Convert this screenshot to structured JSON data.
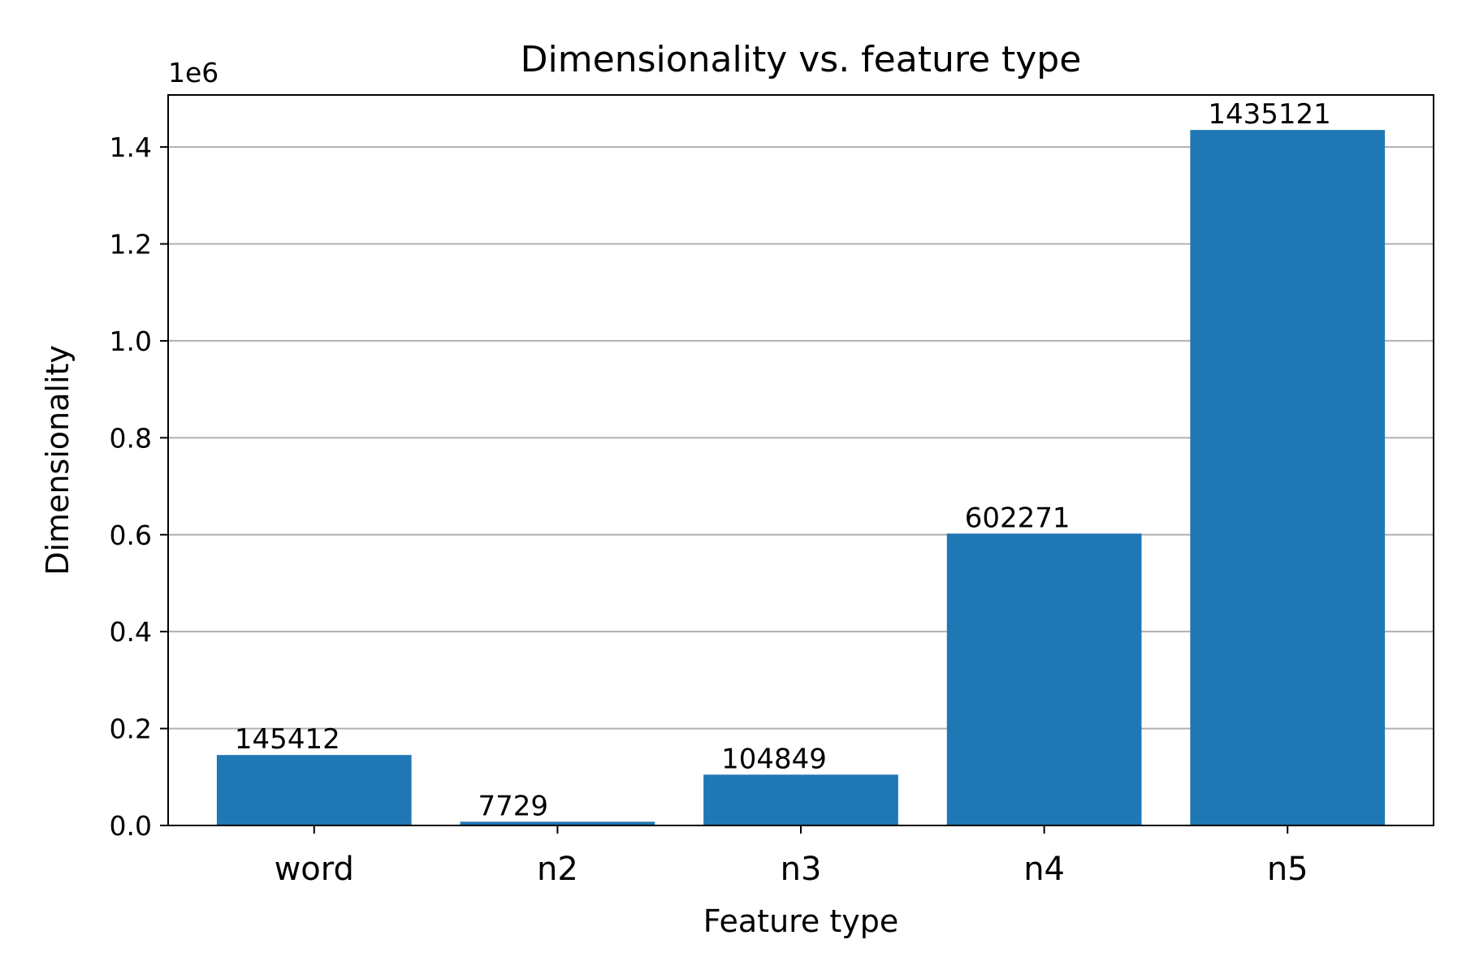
{
  "chart_data": {
    "type": "bar",
    "title": "Dimensionality vs. feature type",
    "xlabel": "Feature type",
    "ylabel": "Dimensionality",
    "y_offset_label": "1e6",
    "y_scale": 1000000,
    "categories": [
      "word",
      "n2",
      "n3",
      "n4",
      "n5"
    ],
    "values": [
      145412,
      7729,
      104849,
      602271,
      1435121
    ],
    "data_labels": [
      "145412",
      "7729",
      "104849",
      "602271",
      "1435121"
    ],
    "ylim": [
      0,
      1507377
    ],
    "yticks": [
      0,
      200000,
      400000,
      600000,
      800000,
      1000000,
      1200000,
      1400000
    ],
    "ytick_labels": [
      "0.0",
      "0.2",
      "0.4",
      "0.6",
      "0.8",
      "1.0",
      "1.2",
      "1.4"
    ],
    "grid": "y",
    "bar_color": "#1f77b4",
    "grid_color": "#b0b0b0"
  }
}
